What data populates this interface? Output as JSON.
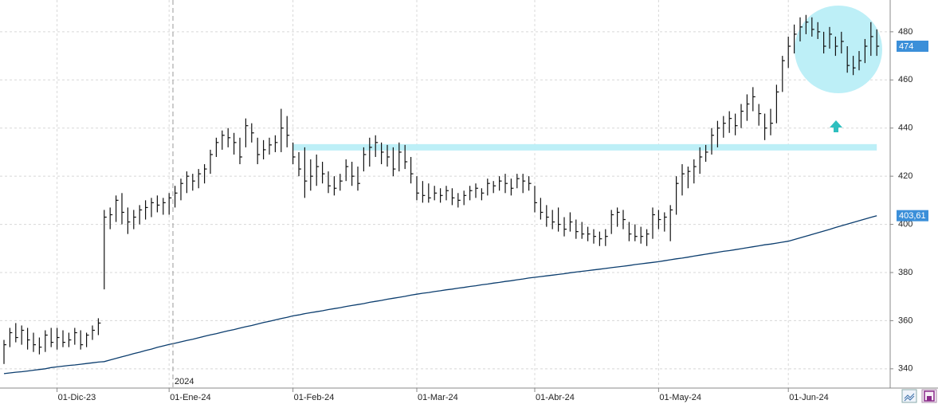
{
  "chart_data": {
    "type": "ohlc",
    "categories": [
      null,
      null,
      null,
      null,
      null,
      null,
      null,
      null,
      null,
      "01-Dic-23",
      null,
      null,
      null,
      null,
      null,
      null,
      null,
      null,
      null,
      null,
      null,
      null,
      null,
      null,
      null,
      null,
      null,
      null,
      "01-Ene-24",
      null,
      null,
      null,
      null,
      null,
      null,
      null,
      null,
      null,
      null,
      null,
      null,
      null,
      null,
      null,
      null,
      null,
      null,
      null,
      null,
      "01-Feb-24",
      null,
      null,
      null,
      null,
      null,
      null,
      null,
      null,
      null,
      null,
      null,
      null,
      null,
      null,
      null,
      null,
      null,
      null,
      null,
      null,
      "01-Mar-24",
      null,
      null,
      null,
      null,
      null,
      null,
      null,
      null,
      null,
      null,
      null,
      null,
      null,
      null,
      null,
      null,
      null,
      null,
      null,
      "01-Abr-24",
      null,
      null,
      null,
      null,
      null,
      null,
      null,
      null,
      null,
      null,
      null,
      null,
      null,
      null,
      null,
      null,
      null,
      null,
      null,
      null,
      "01-May-24",
      null,
      null,
      null,
      null,
      null,
      null,
      null,
      null,
      null,
      null,
      null,
      null,
      null,
      null,
      null,
      null,
      null,
      null,
      null,
      null,
      null,
      "01-Jun-24",
      null,
      null,
      null,
      null,
      null,
      null,
      null,
      null,
      null,
      null,
      null,
      null,
      null,
      null,
      null
    ],
    "high": [
      352,
      357,
      359,
      358,
      357,
      355,
      353,
      356,
      357,
      357,
      356,
      355,
      357,
      356,
      355,
      358,
      361,
      406,
      407,
      412,
      413,
      407,
      406,
      408,
      410,
      411,
      412,
      411,
      413,
      416,
      419,
      422,
      421,
      423,
      425,
      431,
      436,
      439,
      440,
      438,
      436,
      444,
      442,
      436,
      435,
      436,
      437,
      448,
      445,
      434,
      430,
      432,
      427,
      429,
      426,
      422,
      420,
      421,
      427,
      426,
      424,
      432,
      436,
      437,
      434,
      433,
      432,
      434,
      433,
      428,
      420,
      418,
      417,
      416,
      415,
      416,
      415,
      413,
      414,
      416,
      417,
      415,
      419,
      418,
      420,
      421,
      419,
      421,
      421,
      420,
      416,
      411,
      408,
      406,
      407,
      403,
      405,
      402,
      401,
      399,
      398,
      397,
      398,
      406,
      407,
      406,
      401,
      400,
      399,
      398,
      407,
      406,
      405,
      408,
      420,
      425,
      424,
      427,
      432,
      433,
      440,
      443,
      445,
      447,
      446,
      450,
      454,
      457,
      450,
      446,
      448,
      458,
      470,
      478,
      483,
      486,
      487,
      486,
      484,
      480,
      482,
      478,
      480,
      474,
      470,
      472,
      477,
      484,
      481
    ],
    "low": [
      342,
      349,
      351,
      350,
      348,
      347,
      346,
      347,
      349,
      348,
      349,
      349,
      350,
      348,
      349,
      352,
      354,
      373,
      398,
      401,
      400,
      396,
      398,
      400,
      402,
      403,
      405,
      404,
      404,
      407,
      410,
      413,
      414,
      415,
      417,
      421,
      428,
      431,
      432,
      429,
      425,
      432,
      434,
      425,
      427,
      429,
      430,
      430,
      432,
      425,
      420,
      411,
      414,
      416,
      417,
      413,
      412,
      414,
      418,
      416,
      414,
      422,
      424,
      428,
      425,
      424,
      420,
      422,
      423,
      417,
      410,
      409,
      409,
      410,
      409,
      410,
      408,
      407,
      408,
      410,
      411,
      410,
      412,
      413,
      414,
      413,
      412,
      415,
      413,
      414,
      405,
      402,
      399,
      398,
      397,
      395,
      397,
      394,
      394,
      393,
      392,
      391,
      391,
      396,
      399,
      398,
      393,
      393,
      392,
      391,
      394,
      398,
      397,
      393,
      404,
      412,
      415,
      417,
      421,
      426,
      429,
      432,
      436,
      438,
      437,
      440,
      443,
      447,
      441,
      435,
      437,
      442,
      455,
      465,
      471,
      476,
      479,
      478,
      477,
      471,
      473,
      470,
      471,
      463,
      462,
      464,
      467,
      470,
      470
    ],
    "close": [
      350,
      355,
      353,
      356,
      352,
      350,
      349,
      354,
      351,
      353,
      351,
      352,
      355,
      350,
      354,
      356,
      359,
      403,
      404,
      410,
      405,
      401,
      403,
      406,
      407,
      409,
      408,
      409,
      411,
      413,
      417,
      420,
      418,
      421,
      423,
      429,
      434,
      437,
      436,
      434,
      428,
      441,
      438,
      429,
      431,
      433,
      434,
      440,
      437,
      428,
      423,
      418,
      420,
      424,
      421,
      416,
      415,
      418,
      424,
      420,
      417,
      429,
      432,
      434,
      430,
      428,
      423,
      430,
      426,
      421,
      413,
      412,
      411,
      413,
      412,
      414,
      411,
      410,
      412,
      414,
      415,
      413,
      417,
      416,
      418,
      417,
      415,
      419,
      418,
      417,
      409,
      405,
      403,
      401,
      400,
      398,
      401,
      397,
      396,
      396,
      395,
      394,
      395,
      404,
      405,
      402,
      396,
      395,
      395,
      396,
      404,
      402,
      403,
      406,
      417,
      421,
      422,
      424,
      428,
      430,
      437,
      440,
      442,
      444,
      441,
      447,
      450,
      453,
      446,
      440,
      442,
      455,
      468,
      474,
      479,
      482,
      484,
      481,
      480,
      474,
      479,
      474,
      476,
      466,
      465,
      468,
      474,
      478,
      474
    ],
    "bar_color": "#111111",
    "moving_average": {
      "color": "#0b3d6e",
      "values": [
        338.0,
        338.3,
        338.6,
        338.8,
        339.1,
        339.4,
        339.7,
        340.0,
        340.5,
        340.8,
        341.1,
        341.4,
        341.6,
        341.9,
        342.2,
        342.5,
        342.8,
        343.0,
        343.7,
        344.3,
        345.0,
        345.6,
        346.3,
        346.9,
        347.6,
        348.2,
        348.9,
        349.5,
        350.1,
        350.6,
        351.2,
        351.8,
        352.3,
        352.9,
        353.5,
        354.1,
        354.6,
        355.2,
        355.8,
        356.3,
        356.9,
        357.5,
        358.0,
        358.6,
        359.2,
        359.7,
        360.3,
        360.9,
        361.4,
        362.0,
        362.4,
        362.9,
        363.3,
        363.7,
        364.1,
        364.6,
        365.0,
        365.4,
        365.9,
        366.3,
        366.7,
        367.1,
        367.6,
        368.0,
        368.4,
        368.9,
        369.3,
        369.7,
        370.1,
        370.6,
        371.0,
        371.4,
        371.7,
        372.1,
        372.4,
        372.8,
        373.1,
        373.5,
        373.8,
        374.2,
        374.5,
        374.9,
        375.2,
        375.6,
        375.9,
        376.3,
        376.6,
        377.0,
        377.3,
        377.7,
        378.0,
        378.3,
        378.6,
        378.9,
        379.2,
        379.5,
        379.9,
        380.2,
        380.5,
        380.8,
        381.1,
        381.4,
        381.7,
        382.0,
        382.3,
        382.6,
        382.9,
        383.3,
        383.6,
        383.9,
        384.2,
        384.5,
        384.9,
        385.3,
        385.7,
        386.0,
        386.4,
        386.8,
        387.2,
        387.6,
        388.0,
        388.4,
        388.8,
        389.1,
        389.5,
        389.9,
        390.3,
        390.7,
        391.1,
        391.5,
        391.8,
        392.2,
        392.6,
        393.0,
        393.7,
        394.4,
        395.1,
        395.8,
        396.5,
        397.2,
        397.9,
        398.7,
        399.4,
        400.1,
        400.8,
        401.5,
        402.2,
        402.9,
        403.61
      ]
    },
    "support_level": 432,
    "support_color": "#bdeff7",
    "markers": [
      {
        "value": 474,
        "color": "#3b8fd9"
      },
      {
        "value": {
          "value": 403.61,
          "label": "403,61"
        },
        "color": "#3b8fd9"
      }
    ],
    "year_label": "2024",
    "ylim": [
      332,
      493.2
    ],
    "yticks": [
      340,
      360,
      380,
      400,
      420,
      440,
      460,
      480
    ],
    "grid": true
  }
}
